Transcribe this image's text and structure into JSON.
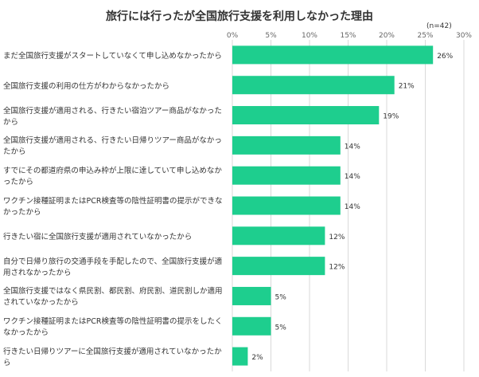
{
  "chart_data": {
    "type": "bar",
    "orientation": "horizontal",
    "title": "旅行には行ったが全国旅行支援を利用しなかった理由",
    "note": "(n=42)",
    "xlim": [
      0,
      30
    ],
    "ticks": [
      "0%",
      "5%",
      "10%",
      "15%",
      "20%",
      "25%",
      "30%"
    ],
    "tick_values": [
      0,
      5,
      10,
      15,
      20,
      25,
      30
    ],
    "bar_color": "#1ece8e",
    "grid_color": "#d9d9d9",
    "categories": [
      "まだ全国旅行支援がスタートしていなくて申し込めなかったから",
      "全国旅行支援の利用の仕方がわからなかったから",
      "全国旅行支援が適用される、行きたい宿泊ツアー商品がなかったから",
      "全国旅行支援が適用される、行きたい日帰りツアー商品がなかったから",
      "すでにその都道府県の申込み枠が上限に達していて申し込めなかったから",
      "ワクチン接種証明またはPCR検査等の陰性証明書の提示ができなかったから",
      "行きたい宿に全国旅行支援が適用されていなかったから",
      "自分で日帰り旅行の交通手段を手配したので、全国旅行支援が適用されなかったから",
      "全国旅行支援ではなく県民割、都民割、府民割、道民割しか適用されていなかったから",
      "ワクチン接種証明またはPCR検査等の陰性証明書の提示をしたくなかったから",
      "行きたい日帰りツアーに全国旅行支援が適用されていなかったから"
    ],
    "values": [
      26,
      21,
      19,
      14,
      14,
      14,
      12,
      12,
      5,
      5,
      2
    ],
    "value_labels": [
      "26%",
      "21%",
      "19%",
      "14%",
      "14%",
      "14%",
      "12%",
      "12%",
      "5%",
      "5%",
      "2%"
    ]
  }
}
